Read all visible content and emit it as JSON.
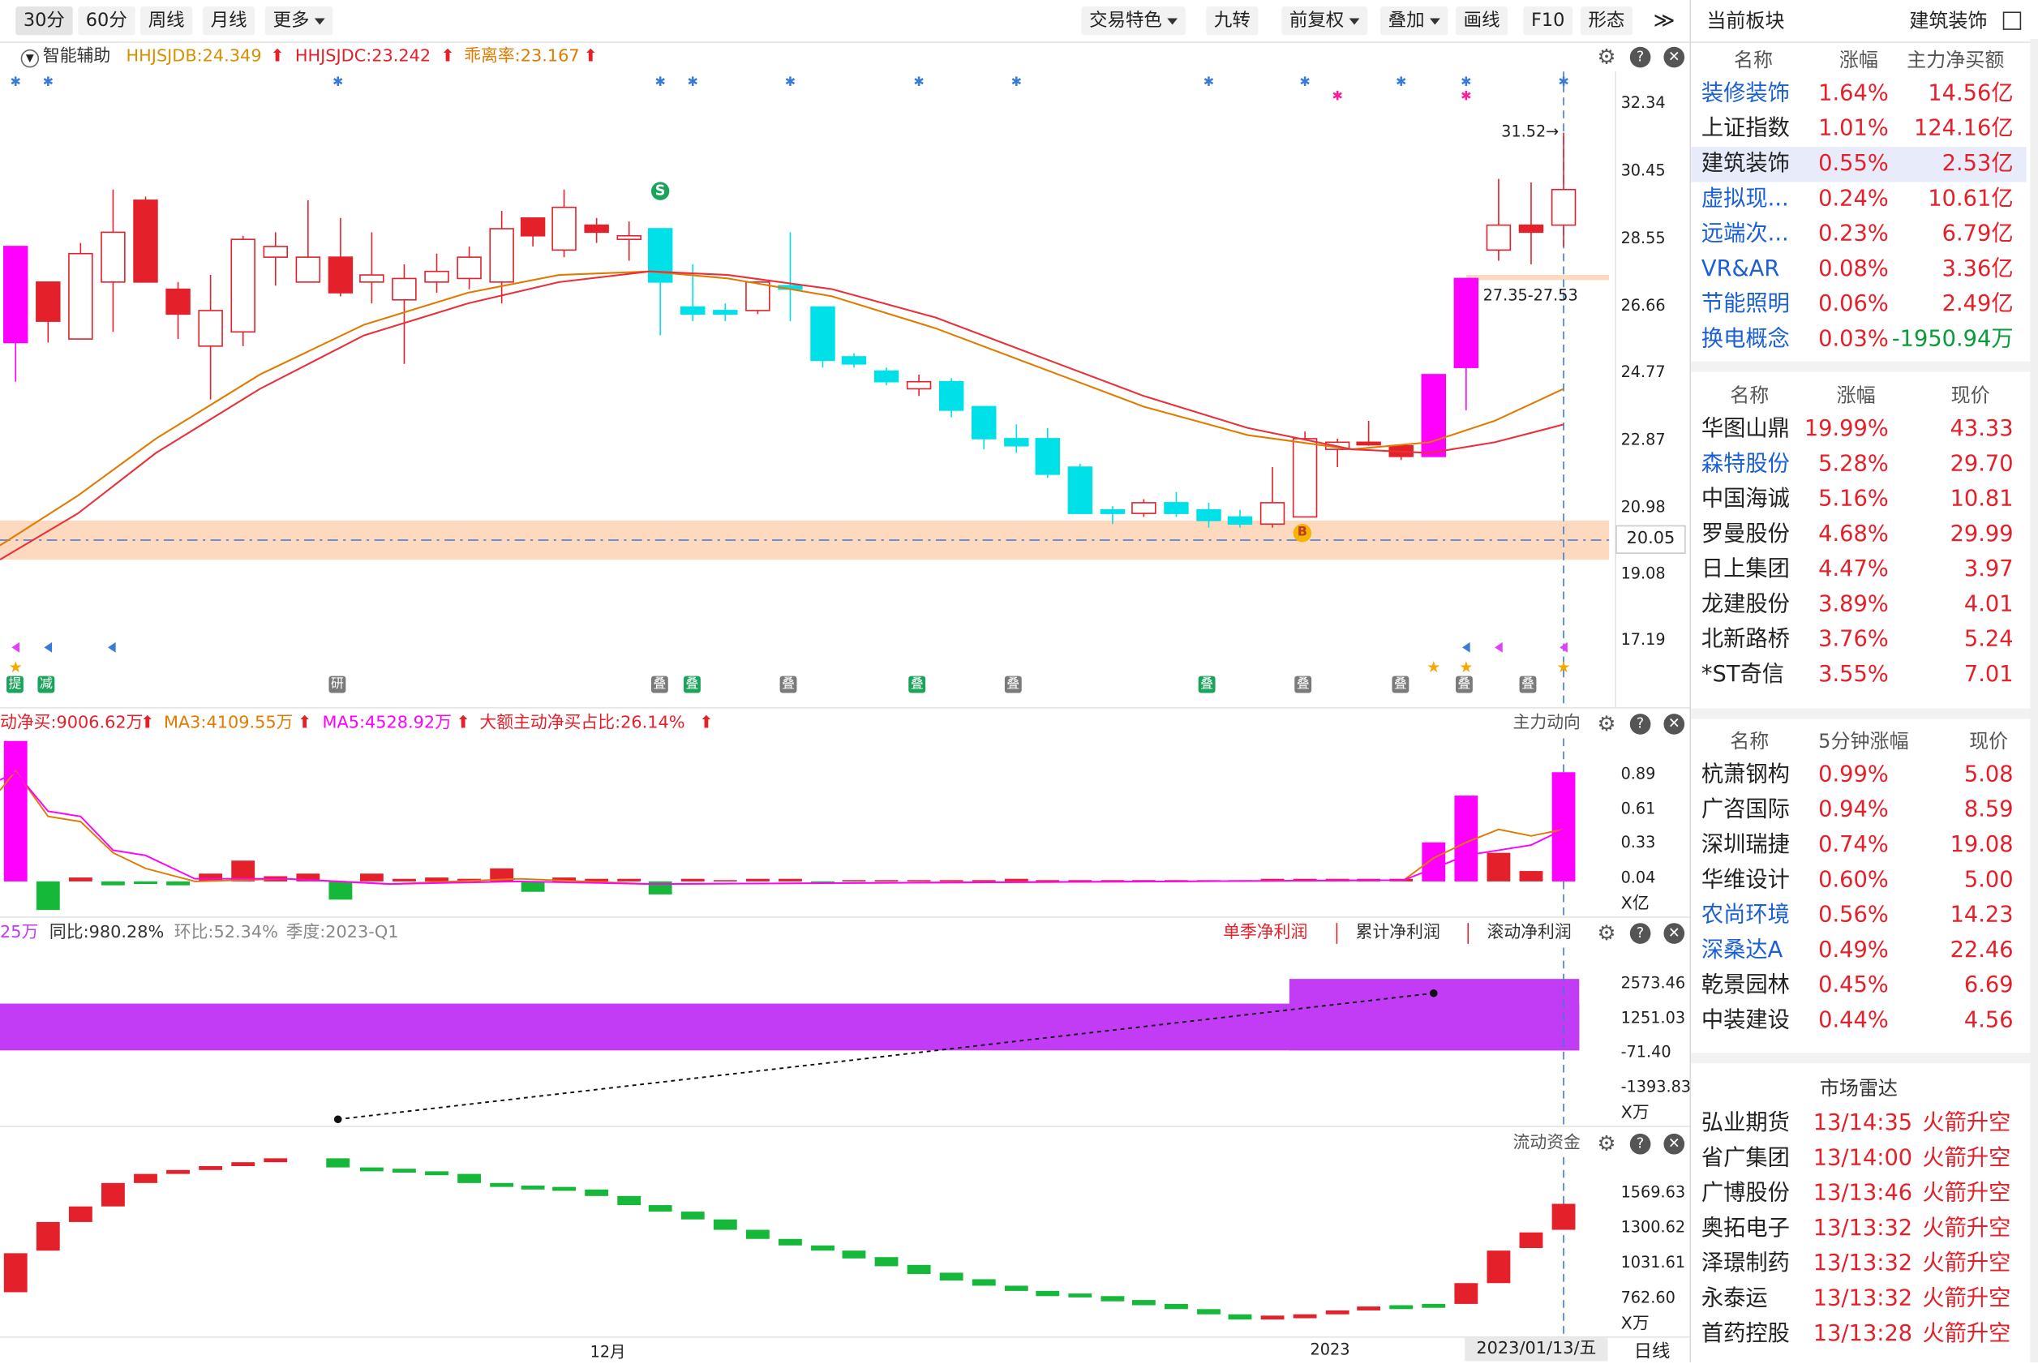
{
  "toolbar": {
    "periods": [
      "30分",
      "60分",
      "周线",
      "月线"
    ],
    "more": "更多",
    "right_buttons": [
      "交易特色",
      "九转",
      "前复权",
      "叠加",
      "画线",
      "F10",
      "形态"
    ],
    "collapse": "≫"
  },
  "main_pane": {
    "name": "智能辅助",
    "ind1": "HHJSJDB:24.349",
    "ind2": "HHJSJDC:23.242",
    "ind3": "乖离率:23.167",
    "price_axis": [
      "32.34",
      "30.45",
      "28.55",
      "26.66",
      "24.77",
      "22.87",
      "20.98",
      "19.08",
      "17.19"
    ],
    "current_price": "20.05",
    "high_label": "31.52→",
    "range_label": "27.35-27.53",
    "sell_mark": "S",
    "buy_mark": "B",
    "tags": [
      "提",
      "减",
      "研",
      "叠",
      "叠",
      "叠",
      "叠",
      "叠",
      "叠",
      "叠",
      "叠",
      "叠",
      "叠"
    ]
  },
  "pane2": {
    "t1": "动净买:9006.62万",
    "t2": "MA3:4109.55万",
    "t3": "MA5:4528.92万",
    "t4": "大额主动净买占比:26.14%",
    "title": "主力动向",
    "axis": [
      "0.89",
      "0.61",
      "0.33",
      "0.04"
    ],
    "unit": "X亿"
  },
  "pane3": {
    "t1": "25万",
    "t2": "同比:980.28%",
    "t3": "环比:52.34%",
    "t4": "季度:2023-Q1",
    "tabs": [
      "单季净利润",
      "累计净利润",
      "滚动净利润"
    ],
    "axis": [
      "2573.46",
      "1251.03",
      "-71.40",
      "-1393.83"
    ],
    "unit": "X万"
  },
  "pane4": {
    "title": "流动资金",
    "axis": [
      "1569.63",
      "1300.62",
      "1031.61",
      "762.60"
    ],
    "unit": "X万"
  },
  "x_axis": {
    "labels": [
      "12月",
      "2023"
    ],
    "date": "2023/01/13/五",
    "period": "日线"
  },
  "colors": {
    "up": "#e4202a",
    "down": "#00e0e8",
    "magenta": "#ff00ff",
    "ma1": "#e07b00",
    "ma2": "#e8313a",
    "purple": "#c23cf5",
    "band": "#fcd9bf"
  },
  "right_panel": {
    "title": "当前板块",
    "sector": "建筑装饰",
    "sector_head": [
      "名称",
      "涨幅",
      "主力净买额"
    ],
    "sectors": [
      {
        "name": "装修装饰",
        "chg": "1.64%",
        "val": "14.56亿",
        "link": true
      },
      {
        "name": "上证指数",
        "chg": "1.01%",
        "val": "124.16亿",
        "link": false
      },
      {
        "name": "建筑装饰",
        "chg": "0.55%",
        "val": "2.53亿",
        "link": false
      },
      {
        "name": "虚拟现...",
        "chg": "0.24%",
        "val": "10.61亿",
        "link": true
      },
      {
        "name": "远端次...",
        "chg": "0.23%",
        "val": "6.79亿",
        "link": true
      },
      {
        "name": "VR&AR",
        "chg": "0.08%",
        "val": "3.36亿",
        "link": true
      },
      {
        "name": "节能照明",
        "chg": "0.06%",
        "val": "2.49亿",
        "link": true
      },
      {
        "name": "换电概念",
        "chg": "0.03%",
        "val": "-1950.94万",
        "link": true
      }
    ],
    "stock_head": [
      "名称",
      "涨幅",
      "现价"
    ],
    "stocks": [
      {
        "name": "华图山鼎",
        "chg": "19.99%",
        "price": "43.33",
        "link": false
      },
      {
        "name": "森特股份",
        "chg": "5.28%",
        "price": "29.70",
        "link": true
      },
      {
        "name": "中国海诚",
        "chg": "5.16%",
        "price": "10.81",
        "link": false
      },
      {
        "name": "罗曼股份",
        "chg": "4.68%",
        "price": "29.99",
        "link": false
      },
      {
        "name": "日上集团",
        "chg": "4.47%",
        "price": "3.97",
        "link": false
      },
      {
        "name": "龙建股份",
        "chg": "3.89%",
        "price": "4.01",
        "link": false
      },
      {
        "name": "北新路桥",
        "chg": "3.76%",
        "price": "5.24",
        "link": false
      },
      {
        "name": "*ST奇信",
        "chg": "3.55%",
        "price": "7.01",
        "link": false
      }
    ],
    "fast_head": [
      "名称",
      "5分钟涨幅",
      "现价"
    ],
    "fast": [
      {
        "name": "杭萧钢构",
        "chg": "0.99%",
        "price": "5.08",
        "link": false
      },
      {
        "name": "广咨国际",
        "chg": "0.94%",
        "price": "8.59",
        "link": false
      },
      {
        "name": "深圳瑞捷",
        "chg": "0.74%",
        "price": "19.08",
        "link": false
      },
      {
        "name": "华维设计",
        "chg": "0.60%",
        "price": "5.00",
        "link": false
      },
      {
        "name": "农尚环境",
        "chg": "0.56%",
        "price": "14.23",
        "link": true
      },
      {
        "name": "深桑达A",
        "chg": "0.49%",
        "price": "22.46",
        "link": true
      },
      {
        "name": "乾景园林",
        "chg": "0.45%",
        "price": "6.69",
        "link": false
      },
      {
        "name": "中装建设",
        "chg": "0.44%",
        "price": "4.56",
        "link": false
      }
    ],
    "radar_title": "市场雷达",
    "radar": [
      {
        "name": "弘业期货",
        "time": "13/14:35",
        "sig": "火箭升空"
      },
      {
        "name": "省广集团",
        "time": "13/14:00",
        "sig": "火箭升空"
      },
      {
        "name": "广博股份",
        "time": "13/13:46",
        "sig": "火箭升空"
      },
      {
        "name": "奥拓电子",
        "time": "13/13:32",
        "sig": "火箭升空"
      },
      {
        "name": "泽璟制药",
        "time": "13/13:32",
        "sig": "火箭升空"
      },
      {
        "name": "永泰运",
        "time": "13/13:32",
        "sig": "火箭升空"
      },
      {
        "name": "首药控股",
        "time": "13/13:28",
        "sig": "火箭升空"
      }
    ]
  }
}
